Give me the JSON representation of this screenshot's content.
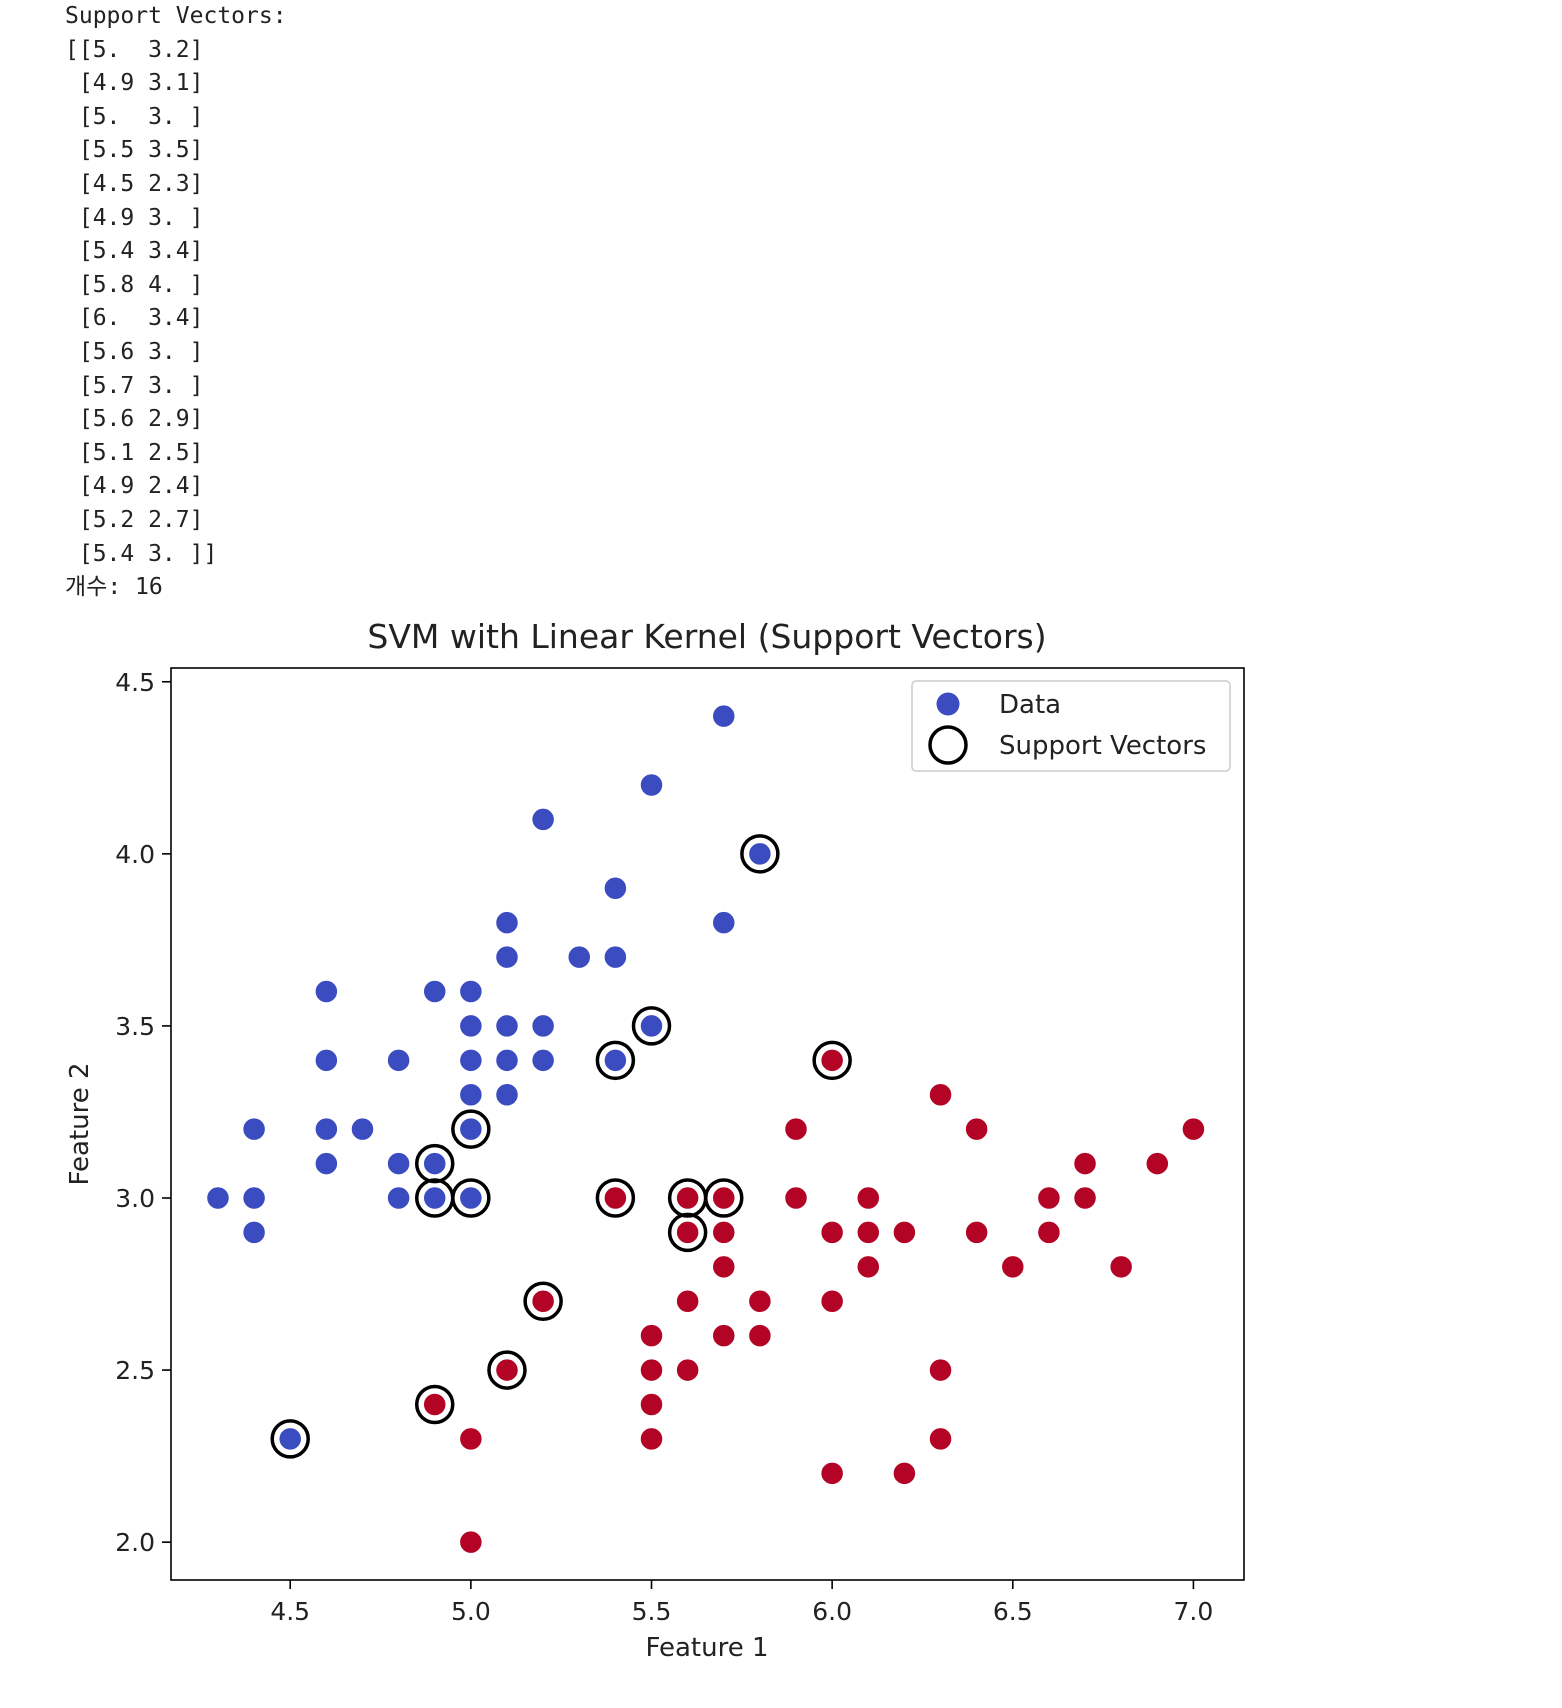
{
  "console": {
    "lines": [
      "Support Vectors:",
      "[[5.  3.2]",
      " [4.9 3.1]",
      " [5.  3. ]",
      " [5.5 3.5]",
      " [4.5 2.3]",
      " [4.9 3. ]",
      " [5.4 3.4]",
      " [5.8 4. ]",
      " [6.  3.4]",
      " [5.6 3. ]",
      " [5.7 3. ]",
      " [5.6 2.9]",
      " [5.1 2.5]",
      " [4.9 2.4]",
      " [5.2 2.7]",
      " [5.4 3. ]]",
      "개수: 16"
    ]
  },
  "chart_data": {
    "type": "scatter",
    "title": "SVM with Linear Kernel (Support Vectors)",
    "xlabel": "Feature 1",
    "ylabel": "Feature 2",
    "xlim": [
      4.17,
      7.14
    ],
    "ylim": [
      1.89,
      4.54
    ],
    "xticks": [
      4.5,
      5.0,
      5.5,
      6.0,
      6.5,
      7.0
    ],
    "xtick_labels": [
      "4.5",
      "5.0",
      "5.5",
      "6.0",
      "6.5",
      "7.0"
    ],
    "yticks": [
      2.0,
      2.5,
      3.0,
      3.5,
      4.0,
      4.5
    ],
    "ytick_labels": [
      "2.0",
      "2.5",
      "3.0",
      "3.5",
      "4.0",
      "4.5"
    ],
    "grid": false,
    "legend_position": "top-right",
    "legend": [
      "Data",
      "Support Vectors"
    ],
    "colors": {
      "class_0": "#3b4cc0",
      "class_1": "#b40426",
      "support_ring": "#000000"
    },
    "series": [
      {
        "name": "Data",
        "class": 0,
        "points": [
          [
            5.7,
            4.4
          ],
          [
            5.5,
            4.2
          ],
          [
            5.2,
            4.1
          ],
          [
            5.8,
            4.0
          ],
          [
            5.4,
            3.9
          ],
          [
            5.1,
            3.8
          ],
          [
            5.7,
            3.8
          ],
          [
            5.1,
            3.7
          ],
          [
            5.3,
            3.7
          ],
          [
            5.4,
            3.7
          ],
          [
            4.6,
            3.6
          ],
          [
            4.9,
            3.6
          ],
          [
            5.0,
            3.6
          ],
          [
            5.0,
            3.5
          ],
          [
            5.1,
            3.5
          ],
          [
            5.2,
            3.5
          ],
          [
            5.5,
            3.5
          ],
          [
            4.6,
            3.4
          ],
          [
            4.8,
            3.4
          ],
          [
            5.0,
            3.4
          ],
          [
            5.1,
            3.4
          ],
          [
            5.2,
            3.4
          ],
          [
            5.4,
            3.4
          ],
          [
            5.0,
            3.3
          ],
          [
            5.1,
            3.3
          ],
          [
            4.4,
            3.2
          ],
          [
            4.6,
            3.2
          ],
          [
            4.7,
            3.2
          ],
          [
            5.0,
            3.2
          ],
          [
            4.6,
            3.1
          ],
          [
            4.8,
            3.1
          ],
          [
            4.9,
            3.1
          ],
          [
            4.3,
            3.0
          ],
          [
            4.4,
            3.0
          ],
          [
            4.8,
            3.0
          ],
          [
            4.9,
            3.0
          ],
          [
            5.0,
            3.0
          ],
          [
            4.4,
            2.9
          ],
          [
            4.5,
            2.3
          ]
        ]
      },
      {
        "name": "Data",
        "class": 1,
        "points": [
          [
            6.0,
            3.4
          ],
          [
            6.3,
            3.3
          ],
          [
            5.9,
            3.2
          ],
          [
            6.4,
            3.2
          ],
          [
            7.0,
            3.2
          ],
          [
            6.7,
            3.1
          ],
          [
            6.9,
            3.1
          ],
          [
            5.4,
            3.0
          ],
          [
            5.6,
            3.0
          ],
          [
            5.7,
            3.0
          ],
          [
            5.9,
            3.0
          ],
          [
            6.1,
            3.0
          ],
          [
            6.6,
            3.0
          ],
          [
            6.7,
            3.0
          ],
          [
            5.6,
            2.9
          ],
          [
            5.7,
            2.9
          ],
          [
            6.0,
            2.9
          ],
          [
            6.1,
            2.9
          ],
          [
            6.2,
            2.9
          ],
          [
            6.4,
            2.9
          ],
          [
            6.6,
            2.9
          ],
          [
            5.7,
            2.8
          ],
          [
            6.1,
            2.8
          ],
          [
            6.5,
            2.8
          ],
          [
            6.8,
            2.8
          ],
          [
            5.2,
            2.7
          ],
          [
            5.6,
            2.7
          ],
          [
            5.8,
            2.7
          ],
          [
            6.0,
            2.7
          ],
          [
            5.5,
            2.6
          ],
          [
            5.7,
            2.6
          ],
          [
            5.8,
            2.6
          ],
          [
            5.1,
            2.5
          ],
          [
            5.5,
            2.5
          ],
          [
            5.6,
            2.5
          ],
          [
            6.3,
            2.5
          ],
          [
            4.9,
            2.4
          ],
          [
            5.5,
            2.4
          ],
          [
            5.0,
            2.3
          ],
          [
            5.5,
            2.3
          ],
          [
            6.3,
            2.3
          ],
          [
            6.0,
            2.2
          ],
          [
            6.2,
            2.2
          ],
          [
            5.0,
            2.0
          ]
        ]
      },
      {
        "name": "Support Vectors",
        "points": [
          [
            5.0,
            3.2
          ],
          [
            4.9,
            3.1
          ],
          [
            5.0,
            3.0
          ],
          [
            5.5,
            3.5
          ],
          [
            4.5,
            2.3
          ],
          [
            4.9,
            3.0
          ],
          [
            5.4,
            3.4
          ],
          [
            5.8,
            4.0
          ],
          [
            6.0,
            3.4
          ],
          [
            5.6,
            3.0
          ],
          [
            5.7,
            3.0
          ],
          [
            5.6,
            2.9
          ],
          [
            5.1,
            2.5
          ],
          [
            4.9,
            2.4
          ],
          [
            5.2,
            2.7
          ],
          [
            5.4,
            3.0
          ]
        ]
      }
    ]
  }
}
